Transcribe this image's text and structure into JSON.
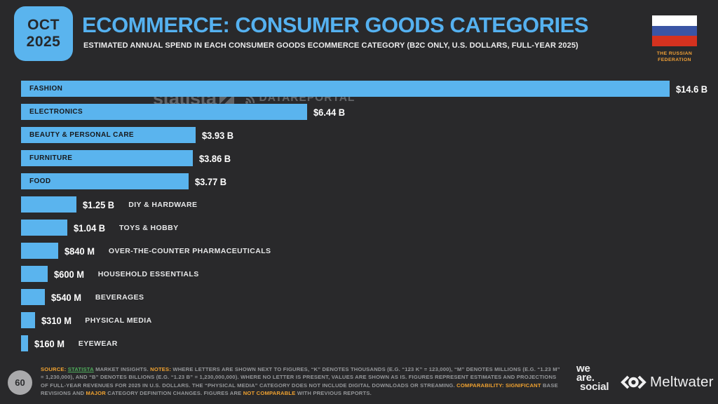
{
  "badge": {
    "month": "OCT",
    "year": "2025"
  },
  "header": {
    "title": "ECOMMERCE: CONSUMER GOODS CATEGORIES",
    "subtitle": "ESTIMATED ANNUAL SPEND IN EACH CONSUMER GOODS ECOMMERCE CATEGORY (B2C ONLY, U.S. DOLLARS, FULL-YEAR 2025)",
    "region": "THE RUSSIAN FEDERATION",
    "flag_colors": {
      "top": "#ffffff",
      "middle": "#3a55a5",
      "bottom": "#d5321f"
    }
  },
  "watermarks": {
    "statista": "statista",
    "datareportal": "DATAREPORTAL"
  },
  "colors": {
    "background": "#29292b",
    "accent_blue": "#5ab4ee",
    "title_blue": "#55b1f0",
    "orange": "#f0a230",
    "green": "#4fae5c"
  },
  "chart_data": {
    "type": "bar",
    "orientation": "horizontal",
    "title": "ECOMMERCE: CONSUMER GOODS CATEGORIES",
    "subtitle": "ESTIMATED ANNUAL SPEND IN EACH CONSUMER GOODS ECOMMERCE CATEGORY (B2C ONLY, U.S. DOLLARS, FULL-YEAR 2025)",
    "unit": "U.S. dollars, full-year 2025, B2C only",
    "bar_color": "#5ab4ee",
    "grid": false,
    "legend": false,
    "max_value_billions": 14.6,
    "xlim_billions": [
      0,
      14.6
    ],
    "bars": [
      {
        "category": "FASHION",
        "value_billions": 14.6,
        "value_label": "$14.6 B",
        "label_inside": true
      },
      {
        "category": "ELECTRONICS",
        "value_billions": 6.44,
        "value_label": "$6.44 B",
        "label_inside": true
      },
      {
        "category": "BEAUTY & PERSONAL CARE",
        "value_billions": 3.93,
        "value_label": "$3.93 B",
        "label_inside": true
      },
      {
        "category": "FURNITURE",
        "value_billions": 3.86,
        "value_label": "$3.86 B",
        "label_inside": true
      },
      {
        "category": "FOOD",
        "value_billions": 3.77,
        "value_label": "$3.77 B",
        "label_inside": true
      },
      {
        "category": "DIY & HARDWARE",
        "value_billions": 1.25,
        "value_label": "$1.25 B",
        "label_inside": false
      },
      {
        "category": "TOYS & HOBBY",
        "value_billions": 1.04,
        "value_label": "$1.04 B",
        "label_inside": false
      },
      {
        "category": "OVER-THE-COUNTER PHARMACEUTICALS",
        "value_billions": 0.84,
        "value_label": "$840 M",
        "label_inside": false
      },
      {
        "category": "HOUSEHOLD ESSENTIALS",
        "value_billions": 0.6,
        "value_label": "$600 M",
        "label_inside": false
      },
      {
        "category": "BEVERAGES",
        "value_billions": 0.54,
        "value_label": "$540 M",
        "label_inside": false
      },
      {
        "category": "PHYSICAL MEDIA",
        "value_billions": 0.31,
        "value_label": "$310 M",
        "label_inside": false
      },
      {
        "category": "EYEWEAR",
        "value_billions": 0.16,
        "value_label": "$160 M",
        "label_inside": false
      }
    ]
  },
  "footer": {
    "page_number": "60",
    "notes_segments": [
      {
        "text": "SOURCE: ",
        "style": "orange-bold"
      },
      {
        "text": "STATISTA",
        "style": "link"
      },
      {
        "text": " MARKET INSIGHTS. ",
        "style": "default"
      },
      {
        "text": "NOTES: ",
        "style": "orange-bold"
      },
      {
        "text": "WHERE LETTERS ARE SHOWN NEXT TO FIGURES, “K” DENOTES THOUSANDS (E.G. “123 K” = 123,000), “M” DENOTES MILLIONS (E.G. “1.23 M” = 1,230,000), AND “B” DENOTES BILLIONS (E.G. “1.23 B” = 1,230,000,000). WHERE NO LETTER IS PRESENT, VALUES ARE SHOWN AS IS. FIGURES REPRESENT ESTIMATES AND PROJECTIONS OF FULL-YEAR REVENUES FOR 2025 IN U.S. DOLLARS. THE “PHYSICAL MEDIA” CATEGORY DOES NOT INCLUDE DIGITAL DOWNLOADS OR STREAMING. ",
        "style": "default"
      },
      {
        "text": "COMPARABILITY: ",
        "style": "orange-bold"
      },
      {
        "text": "SIGNIFICANT",
        "style": "orange"
      },
      {
        "text": " BASE REVISIONS AND ",
        "style": "default"
      },
      {
        "text": "MAJOR",
        "style": "orange"
      },
      {
        "text": " CATEGORY DEFINITION CHANGES. FIGURES ARE ",
        "style": "default"
      },
      {
        "text": "NOT COMPARABLE",
        "style": "orange"
      },
      {
        "text": " WITH PREVIOUS REPORTS.",
        "style": "default"
      }
    ],
    "logos": {
      "we_lines": [
        "we",
        "are.",
        "social"
      ],
      "meltwater": "Meltwater"
    }
  }
}
